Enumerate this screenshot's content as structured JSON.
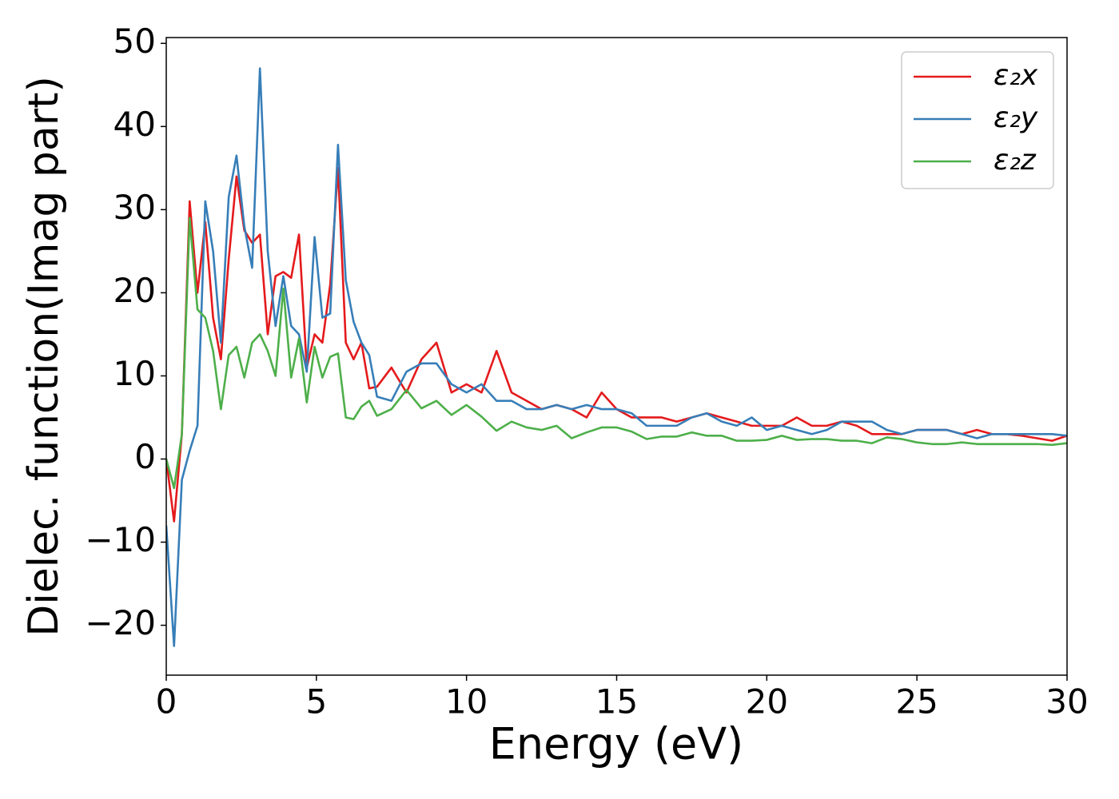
{
  "chart_data": {
    "type": "line",
    "xlabel": "Energy (eV)",
    "ylabel": "Dielec. function(Imag part)",
    "x": [
      0,
      0.26,
      0.52,
      0.78,
      1.04,
      1.3,
      1.56,
      1.82,
      2.08,
      2.34,
      2.6,
      2.86,
      3.12,
      3.38,
      3.64,
      3.9,
      4.16,
      4.42,
      4.68,
      4.94,
      5.2,
      5.46,
      5.72,
      5.98,
      6.24,
      6.5,
      6.76,
      7.02,
      7.5,
      8,
      8.5,
      9,
      9.5,
      10,
      10.5,
      11,
      11.5,
      12,
      12.5,
      13,
      13.5,
      14,
      14.5,
      15,
      15.5,
      16,
      16.5,
      17,
      17.5,
      18,
      18.5,
      19,
      19.5,
      20,
      20.5,
      21,
      21.5,
      22,
      22.5,
      23,
      23.5,
      24,
      24.5,
      25,
      25.5,
      26,
      26.5,
      27,
      27.5,
      28,
      28.5,
      29,
      29.5,
      30
    ],
    "series": [
      {
        "name": "ε₂x",
        "color": "#e41a1c",
        "values": [
          0,
          -7.5,
          3,
          31,
          20,
          28.5,
          17,
          12,
          24,
          34,
          27.5,
          26,
          27,
          15,
          22,
          22.5,
          21.8,
          27,
          11,
          15,
          14,
          21,
          35,
          14,
          12,
          14,
          8.5,
          8.7,
          11,
          8,
          12,
          14,
          8,
          9,
          8,
          13,
          8,
          7,
          6,
          6.5,
          6,
          5,
          8,
          6,
          5,
          5,
          5,
          4.5,
          5,
          5.5,
          5,
          4.5,
          4,
          4,
          4,
          5,
          4,
          4,
          4.5,
          4,
          3,
          3,
          3,
          3.5,
          3.5,
          3.5,
          3,
          3.5,
          3,
          3,
          2.8,
          2.5,
          2.2,
          2.8
        ]
      },
      {
        "name": "ε₂y",
        "color": "#377eb8",
        "values": [
          -8,
          -22.5,
          -2.5,
          1,
          4,
          31,
          25,
          14,
          31.5,
          36.5,
          28,
          23,
          47,
          25,
          16,
          22,
          16,
          15,
          10.5,
          26.7,
          17,
          17.5,
          37.8,
          21.5,
          16.5,
          14,
          12.5,
          7.5,
          7,
          10.5,
          11.5,
          11.5,
          9,
          8,
          9,
          7,
          7,
          6,
          6,
          6.5,
          6,
          6.5,
          6,
          6,
          5.5,
          4,
          4,
          4,
          5,
          5.5,
          4.5,
          4,
          5,
          3.5,
          4,
          3.5,
          3,
          3.5,
          4.5,
          4.5,
          4.5,
          3.5,
          3,
          3.5,
          3.5,
          3.5,
          3,
          2.5,
          3,
          3,
          3,
          3,
          3,
          2.8
        ]
      },
      {
        "name": "ε₂z",
        "color": "#4daf4a",
        "values": [
          0,
          -3.5,
          3,
          29,
          18,
          17,
          13,
          6,
          12.5,
          13.5,
          9.8,
          14,
          15,
          13,
          10,
          20.5,
          9.8,
          14.5,
          6.8,
          13.5,
          9.8,
          12.3,
          12.7,
          5,
          4.8,
          6.3,
          7,
          5.2,
          6,
          8.3,
          6.1,
          7,
          5.3,
          6.5,
          5.1,
          3.4,
          4.5,
          3.8,
          3.5,
          4,
          2.5,
          3.2,
          3.8,
          3.8,
          3.3,
          2.4,
          2.7,
          2.7,
          3.2,
          2.8,
          2.8,
          2.2,
          2.2,
          2.3,
          2.8,
          2.3,
          2.4,
          2.4,
          2.2,
          2.2,
          1.9,
          2.6,
          2.4,
          2,
          1.8,
          1.8,
          2,
          1.8,
          1.8,
          1.8,
          1.8,
          1.8,
          1.7,
          1.9
        ]
      }
    ],
    "xlim": [
      0,
      30
    ],
    "xticks": [
      0,
      5,
      10,
      15,
      20,
      25,
      30
    ],
    "ylim": [
      -26,
      50.7
    ],
    "yticks": [
      {
        "value": -20,
        "label": "−20"
      },
      {
        "value": -10,
        "label": "−10"
      },
      0,
      10,
      20,
      30,
      40,
      50
    ],
    "legend": "upper right"
  }
}
